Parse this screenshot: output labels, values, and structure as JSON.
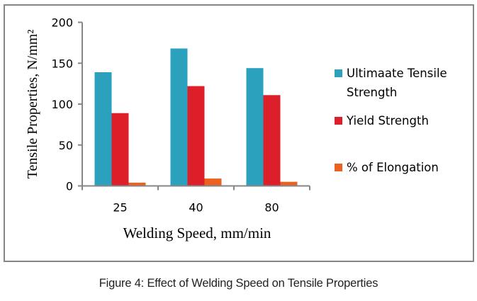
{
  "chart_data": {
    "type": "bar",
    "title": "",
    "xlabel": "Welding Speed, mm/min",
    "ylabel": "Tensile Properties, N/mm²",
    "categories": [
      "25",
      "40",
      "80"
    ],
    "ylim": [
      0,
      200
    ],
    "yticks": [
      0,
      50,
      100,
      150,
      200
    ],
    "ytick_labels": [
      "0",
      "50",
      "100",
      "150",
      "200"
    ],
    "grid": false,
    "legend_position": "right",
    "series": [
      {
        "name": "Ultimaate Tensile Strength",
        "legend_lines": [
          "Ultimaate Tensile",
          "Strength"
        ],
        "color": "#2ca1be",
        "values": [
          139,
          168,
          144
        ]
      },
      {
        "name": "Yield Strength",
        "legend_lines": [
          "Yield Strength"
        ],
        "color": "#dc1f29",
        "values": [
          89,
          122,
          111
        ]
      },
      {
        "name": "% of Elongation",
        "legend_lines": [
          "% of Elongation"
        ],
        "color": "#eb6220",
        "values": [
          4,
          9,
          5
        ]
      }
    ]
  },
  "caption": "Figure 4: Effect of Welding Speed on Tensile Properties"
}
